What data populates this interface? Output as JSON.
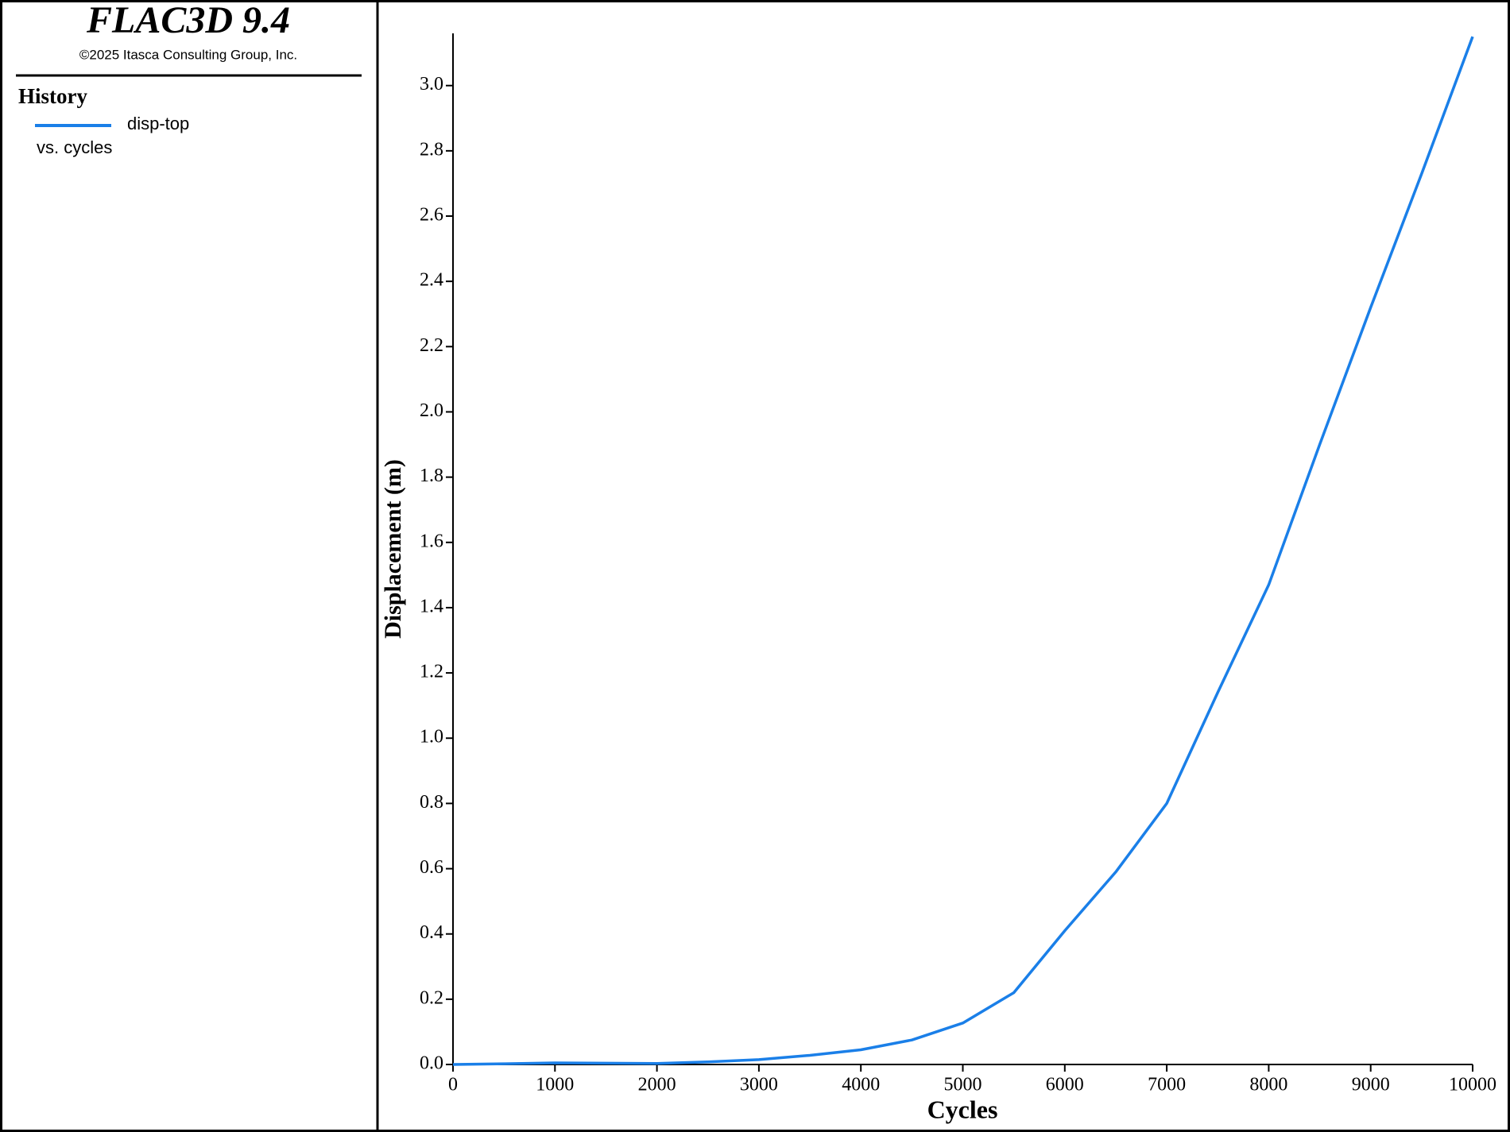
{
  "header": {
    "title": "FLAC3D 9.4",
    "copyright": "©2025 Itasca Consulting Group, Inc."
  },
  "chart_data": {
    "type": "line",
    "legend_title": "History",
    "legend_note": "vs. cycles",
    "xlabel": "Cycles",
    "ylabel": "Displacement (m)",
    "x": [
      0,
      500,
      1000,
      1500,
      2000,
      2500,
      3000,
      3500,
      4000,
      4500,
      5000,
      5500,
      6000,
      6500,
      7000,
      7500,
      8000,
      8500,
      9000,
      9500,
      10000
    ],
    "series": [
      {
        "name": "disp-top",
        "color": "#1a7fe8",
        "values": [
          0,
          0.002,
          0.005,
          0.004,
          0.003,
          0.008,
          0.015,
          0.028,
          0.045,
          0.075,
          0.127,
          0.22,
          0.41,
          0.59,
          0.8,
          1.14,
          1.47,
          1.9,
          2.32,
          2.73,
          3.15
        ]
      }
    ],
    "xlim": [
      0,
      10000
    ],
    "ylim": [
      0,
      3.16
    ],
    "xticks": [
      0,
      1000,
      2000,
      3000,
      4000,
      5000,
      6000,
      7000,
      8000,
      9000,
      10000
    ],
    "yticks": [
      {
        "value": 0,
        "label": "0.0"
      },
      0.2,
      0.4,
      0.6,
      0.8,
      {
        "value": 1,
        "label": "1.0"
      },
      1.2,
      1.4,
      1.6,
      1.8,
      {
        "value": 2,
        "label": "2.0"
      },
      2.2,
      2.4,
      2.6,
      2.8,
      {
        "value": 3,
        "label": "3.0"
      }
    ]
  }
}
